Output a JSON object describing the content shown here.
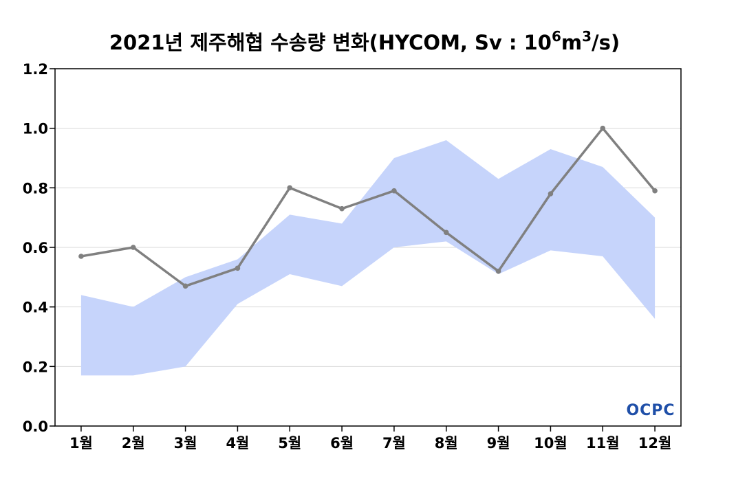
{
  "chart_data": {
    "type": "line",
    "title": "2021년 제주해협 수송량 변화(HYCOM, Sv : 10",
    "title_sup1": "6",
    "title_mid": "m",
    "title_sup2": "3",
    "title_end": "/s)",
    "categories": [
      "1월",
      "2월",
      "3월",
      "4월",
      "5월",
      "6월",
      "7월",
      "8월",
      "9월",
      "10월",
      "11월",
      "12월"
    ],
    "ylim": [
      0.0,
      1.2
    ],
    "yticks": [
      "0.0",
      "0.2",
      "0.4",
      "0.6",
      "0.8",
      "1.0",
      "1.2"
    ],
    "ytick_values": [
      0.0,
      0.2,
      0.4,
      0.6,
      0.8,
      1.0,
      1.2
    ],
    "series": [
      {
        "values": [
          0.57,
          0.6,
          0.47,
          0.53,
          0.8,
          0.73,
          0.79,
          0.65,
          0.52,
          0.78,
          1.0,
          0.79
        ],
        "color": "#808080"
      }
    ],
    "band": {
      "upper": [
        0.44,
        0.4,
        0.5,
        0.56,
        0.71,
        0.68,
        0.9,
        0.96,
        0.83,
        0.93,
        0.87,
        0.7
      ],
      "lower": [
        0.17,
        0.17,
        0.2,
        0.41,
        0.51,
        0.47,
        0.6,
        0.62,
        0.51,
        0.59,
        0.57,
        0.36
      ],
      "color": "#c6d4fb"
    },
    "grid": "horizontal",
    "legend": "none"
  },
  "logo": {
    "text": "OCPC"
  }
}
